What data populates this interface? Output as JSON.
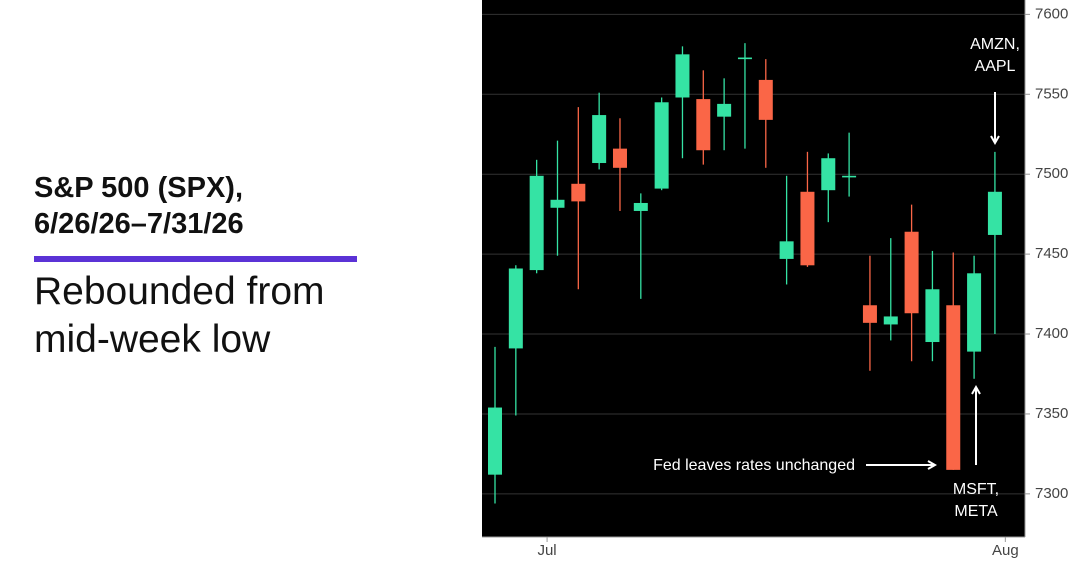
{
  "chart_data": {
    "type": "candlestick",
    "title": [
      "S&P 500 (SPX),",
      "6/26/26–7/31/26"
    ],
    "subtitle": [
      "Rebounded from",
      "mid-week low"
    ],
    "categories": [
      null,
      null,
      null,
      null,
      null,
      null,
      null,
      null,
      null,
      null,
      null,
      null,
      null,
      null,
      null,
      null,
      null,
      null,
      null,
      null,
      null,
      null,
      null,
      null,
      null
    ],
    "xticks": [
      {
        "value": 2.5,
        "label": "Jul"
      },
      {
        "value": 24.5,
        "label": "Aug"
      }
    ],
    "ylim": [
      7273,
      7609
    ],
    "yticks": [
      7300,
      7350,
      7400,
      7450,
      7500,
      7550,
      7600
    ],
    "grid": true,
    "up_color": "#35e3a4",
    "down_color": "#fa6647",
    "open": [
      7312,
      7391,
      7440,
      7479,
      7494,
      7507,
      7516,
      7477,
      7491,
      7548,
      7547,
      7536,
      7572,
      7559,
      7447,
      7489,
      7490,
      7498,
      7418,
      7406,
      7464,
      7395,
      7418,
      7389,
      7462
    ],
    "high": [
      7392,
      7443,
      7509,
      7521,
      7542,
      7551,
      7535,
      7488,
      7548,
      7580,
      7565,
      7560,
      7582,
      7572,
      7499,
      7514,
      7513,
      7526,
      7449,
      7460,
      7481,
      7452,
      7451,
      7449,
      7514
    ],
    "low": [
      7294,
      7349,
      7438,
      7449,
      7428,
      7503,
      7477,
      7422,
      7490,
      7510,
      7506,
      7515,
      7516,
      7504,
      7431,
      7442,
      7470,
      7486,
      7377,
      7396,
      7383,
      7383,
      7315,
      7372,
      7400
    ],
    "close": [
      7354,
      7441,
      7499,
      7484,
      7483,
      7537,
      7504,
      7482,
      7545,
      7575,
      7515,
      7544,
      7573,
      7534,
      7458,
      7443,
      7510,
      7499,
      7407,
      7411,
      7413,
      7428,
      7315,
      7438,
      7489
    ],
    "annotations": [
      {
        "lines": [
          "AMZN,",
          "AAPL"
        ]
      },
      {
        "lines": [
          "Fed leaves rates unchanged"
        ]
      },
      {
        "lines": [
          "MSFT,",
          "META"
        ]
      }
    ]
  }
}
